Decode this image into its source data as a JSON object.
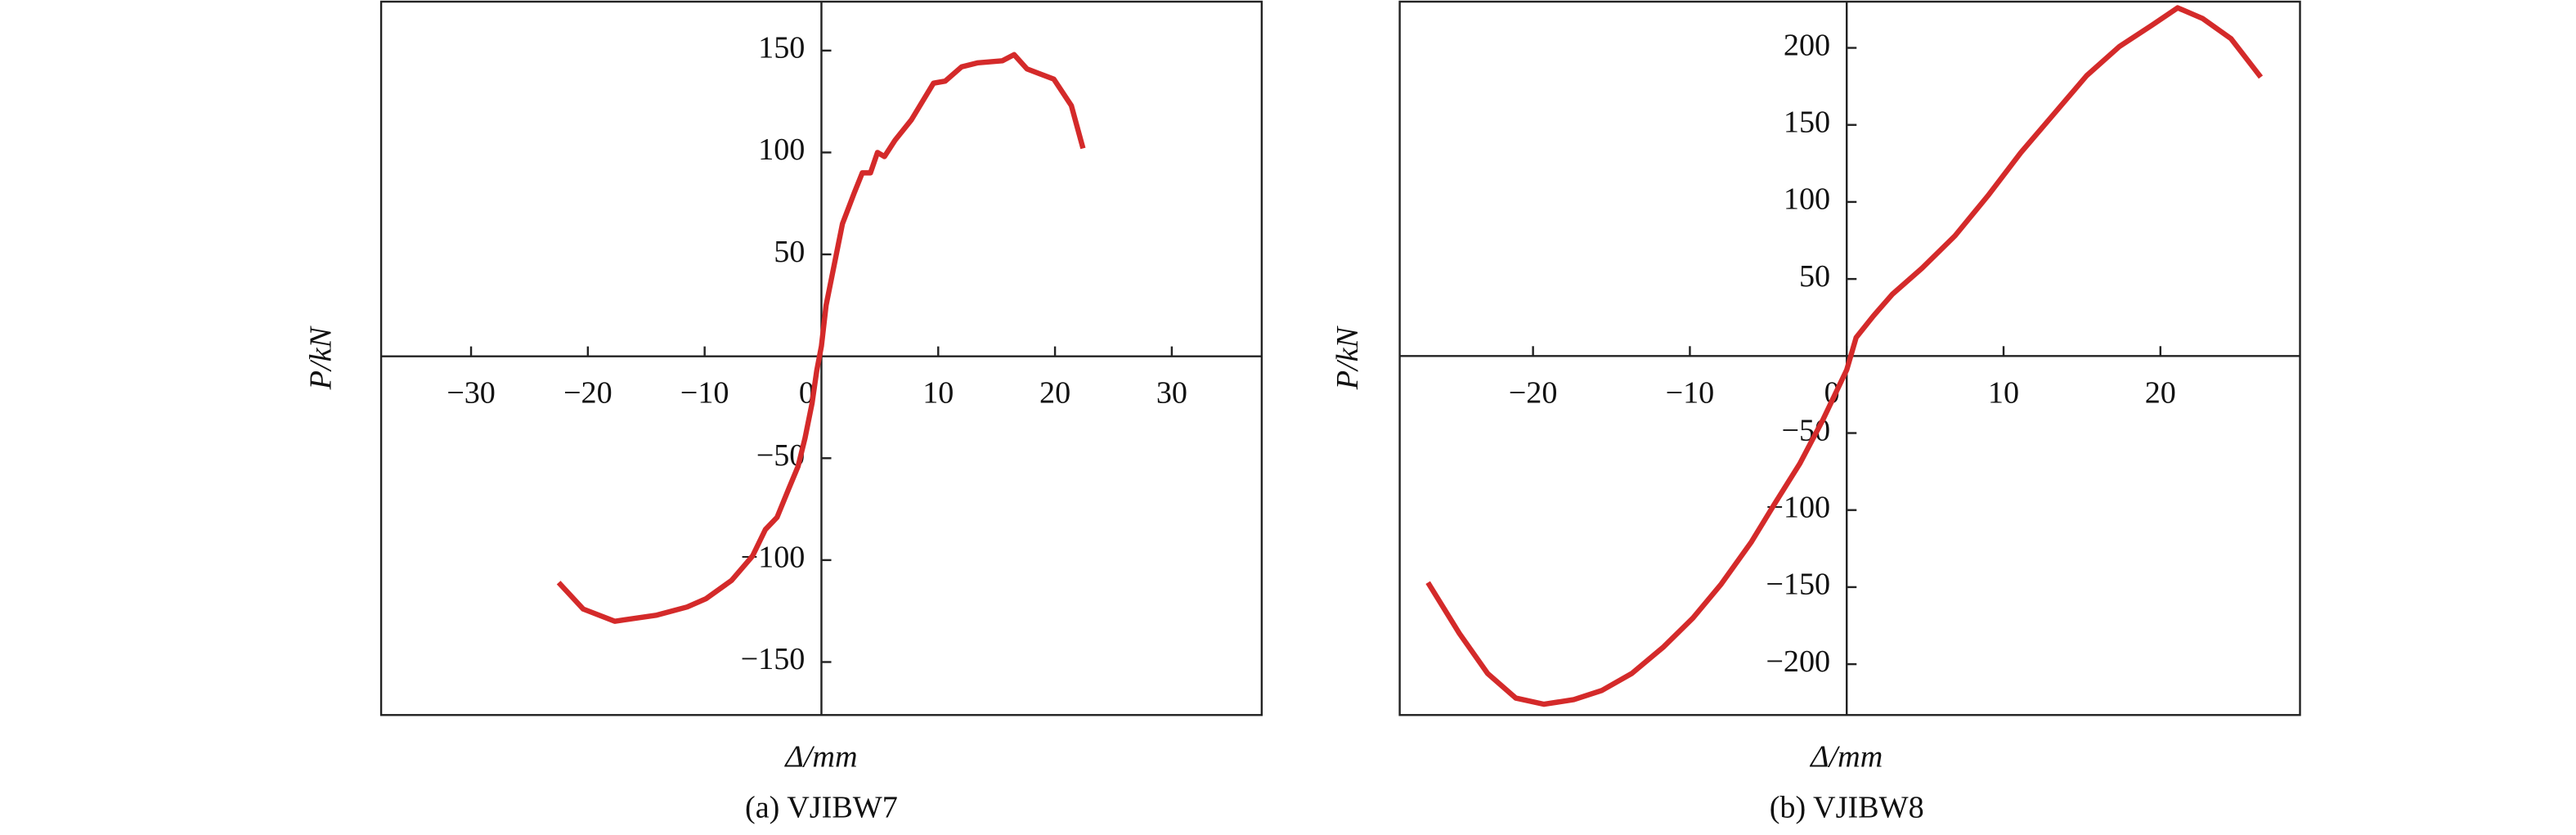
{
  "chart_data": [
    {
      "type": "line",
      "caption": "(a) VJIBW7",
      "xlabel": "Δ/mm",
      "ylabel": "P/kN",
      "xlim": [
        -37.7,
        37.7
      ],
      "ylim": [
        -176,
        174
      ],
      "xticks": [
        {
          "value": -30,
          "label": "−30"
        },
        {
          "value": -20,
          "label": "−20"
        },
        {
          "value": -10,
          "label": "−10"
        },
        0,
        10,
        20,
        30
      ],
      "yticks": [
        {
          "value": -150,
          "label": "−150"
        },
        {
          "value": -100,
          "label": "−100"
        },
        {
          "value": -50,
          "label": "−50"
        },
        50,
        100,
        150
      ],
      "color": "#d42a2a",
      "x": [
        -22.5,
        -20.4,
        -17.7,
        -14.1,
        -11.5,
        -9.9,
        -7.7,
        -5.9,
        -4.8,
        -3.8,
        -2.8,
        -2.0,
        -1.4,
        -0.8,
        -0.4,
        0,
        0.4,
        1.1,
        1.8,
        2.8,
        3.5,
        4.2,
        4.8,
        5.4,
        6.3,
        7.7,
        9.6,
        10.6,
        12.0,
        13.4,
        15.5,
        16.5,
        17.6,
        19.9,
        21.4,
        22.4
      ],
      "values": [
        -111,
        -124,
        -130,
        -127,
        -123,
        -119,
        -110,
        -98,
        -85,
        -79,
        -65,
        -54,
        -40,
        -23,
        -7,
        5,
        25,
        45,
        65,
        80,
        90,
        90,
        100,
        98,
        106,
        116,
        134,
        135,
        142,
        144,
        145,
        148,
        141,
        136,
        123,
        102
      ]
    },
    {
      "type": "line",
      "caption": "(b) VJIBW8",
      "xlabel": "Δ/mm",
      "ylabel": "P/kN",
      "xlim": [
        -28.5,
        28.9
      ],
      "ylim": [
        -233,
        230
      ],
      "xticks": [
        {
          "value": -20,
          "label": "−20"
        },
        {
          "value": -10,
          "label": "−10"
        },
        0,
        10,
        20
      ],
      "yticks": [
        {
          "value": -200,
          "label": "−200"
        },
        {
          "value": -150,
          "label": "−150"
        },
        {
          "value": -100,
          "label": "−100"
        },
        {
          "value": -50,
          "label": "−50"
        },
        50,
        100,
        150,
        200
      ],
      "color": "#d42a2a",
      "x": [
        -26.7,
        -24.7,
        -22.9,
        -21.1,
        -19.3,
        -17.4,
        -15.6,
        -13.7,
        -11.7,
        -9.8,
        -8.0,
        -6.1,
        -4.6,
        -3.0,
        -1.5,
        0,
        0.6,
        1.7,
        2.9,
        4.8,
        6.9,
        9.0,
        11.1,
        13.2,
        15.3,
        17.4,
        19.5,
        21.1,
        22.7,
        24.5,
        26.4
      ],
      "values": [
        -147,
        -180,
        -206,
        -222,
        -226,
        -223,
        -217,
        -206,
        -189,
        -170,
        -148,
        -121,
        -96,
        -70,
        -41,
        -9,
        12,
        26,
        40,
        57,
        78,
        104,
        132,
        157,
        182,
        201,
        215,
        226,
        219,
        206,
        181
      ]
    }
  ]
}
